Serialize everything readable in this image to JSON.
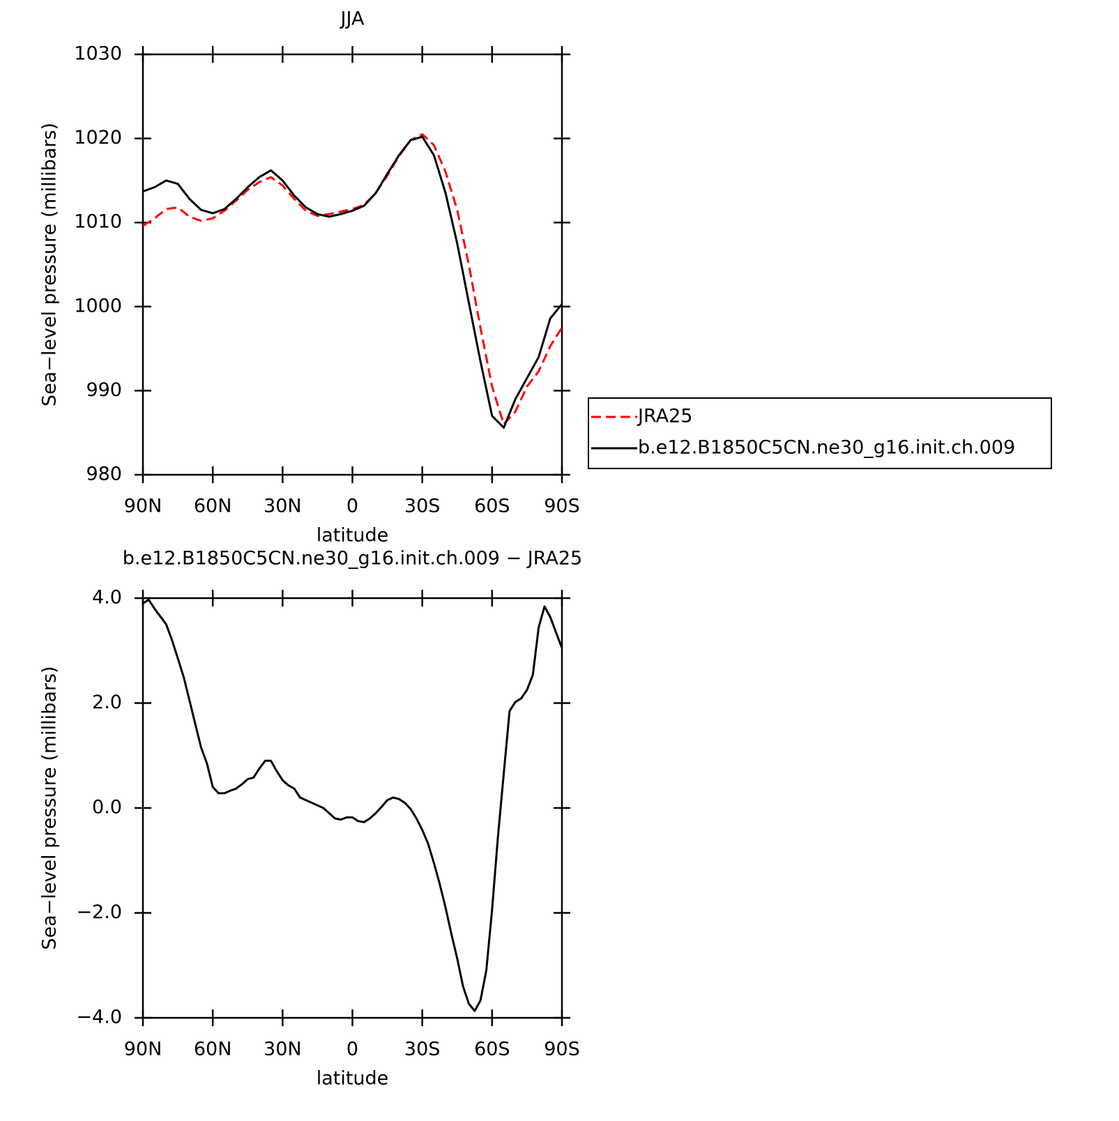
{
  "chart_data": [
    {
      "type": "line",
      "title": "JJA",
      "xlabel": "latitude",
      "ylabel": "Sea−level pressure (millibars)",
      "x": [
        90,
        85,
        80,
        75,
        70,
        65,
        60,
        55,
        50,
        45,
        40,
        35,
        30,
        25,
        20,
        15,
        10,
        5,
        0,
        -5,
        -10,
        -15,
        -20,
        -25,
        -30,
        -35,
        -40,
        -45,
        -50,
        -55,
        -60,
        -65,
        -70,
        -75,
        -80,
        -85,
        -90
      ],
      "xlim": [
        90,
        -90
      ],
      "xticks": [
        {
          "value": 90,
          "label": "90N"
        },
        {
          "value": 60,
          "label": "60N"
        },
        {
          "value": 30,
          "label": "30N"
        },
        0,
        {
          "value": -30,
          "label": "30S"
        },
        {
          "value": -60,
          "label": "60S"
        },
        {
          "value": -90,
          "label": "90S"
        }
      ],
      "ylim": [
        980,
        1030
      ],
      "yticks": [
        980,
        990,
        1000,
        1010,
        1020,
        1030
      ],
      "legend": "right",
      "series": [
        {
          "name": "JRA25",
          "color": "#ff0000",
          "dashed": true,
          "values": [
            1009.6,
            1010.5,
            1011.6,
            1011.8,
            1010.7,
            1010.2,
            1010.5,
            1011.4,
            1012.6,
            1013.9,
            1014.8,
            1015.4,
            1014.4,
            1012.8,
            1011.4,
            1010.8,
            1011.0,
            1011.3,
            1011.6,
            1012.1,
            1013.5,
            1015.6,
            1017.9,
            1019.8,
            1020.5,
            1019.2,
            1016.0,
            1011.5,
            1005.0,
            997.5,
            990.5,
            986.0,
            987.5,
            990.5,
            992.3,
            995.3,
            997.5
          ]
        },
        {
          "name": "b.e12.B1850C5CN.ne30_g16.init.ch.009",
          "color": "#000000",
          "dashed": false,
          "values": [
            1013.7,
            1014.2,
            1015.0,
            1014.6,
            1012.8,
            1011.5,
            1011.1,
            1011.6,
            1012.8,
            1014.2,
            1015.4,
            1016.2,
            1015.0,
            1013.2,
            1011.8,
            1011.0,
            1010.7,
            1011.0,
            1011.4,
            1012.0,
            1013.5,
            1015.8,
            1018.0,
            1019.8,
            1020.2,
            1018.0,
            1013.5,
            1007.5,
            1000.5,
            993.5,
            987.0,
            985.6,
            989.0,
            991.5,
            994.0,
            998.6,
            1000.3
          ]
        }
      ]
    },
    {
      "type": "line",
      "title": "b.e12.B1850C5CN.ne30_g16.init.ch.009 − JRA25",
      "xlabel": "latitude",
      "ylabel": "Sea−level pressure (millibars)",
      "x": [
        90,
        87.5,
        85,
        82.5,
        80,
        77.5,
        75,
        72.5,
        70,
        67.5,
        65,
        62.5,
        60,
        57.5,
        55,
        52.5,
        50,
        47.5,
        45,
        42.5,
        40,
        37.5,
        35,
        32.5,
        30,
        27.5,
        25,
        22.5,
        20,
        17.5,
        15,
        12.5,
        10,
        7.5,
        5,
        2.5,
        0,
        -2.5,
        -5,
        -7.5,
        -10,
        -12.5,
        -15,
        -17.5,
        -20,
        -22.5,
        -25,
        -27.5,
        -30,
        -32.5,
        -35,
        -37.5,
        -40,
        -42.5,
        -45,
        -47.5,
        -50,
        -52.5,
        -55,
        -57.5,
        -60,
        -62.5,
        -65,
        -67.5,
        -70,
        -72.5,
        -75,
        -77.5,
        -80,
        -82.5,
        -85,
        -87.5,
        -90
      ],
      "xlim": [
        90,
        -90
      ],
      "xticks": [
        {
          "value": 90,
          "label": "90N"
        },
        {
          "value": 60,
          "label": "60N"
        },
        {
          "value": 30,
          "label": "30N"
        },
        0,
        {
          "value": -30,
          "label": "30S"
        },
        {
          "value": -60,
          "label": "60S"
        },
        {
          "value": -90,
          "label": "90S"
        }
      ],
      "ylim": [
        -4,
        4
      ],
      "yticks": [
        {
          "value": -4,
          "label": "−4.0"
        },
        {
          "value": -2,
          "label": "−2.0"
        },
        {
          "value": 0,
          "label": "0.0"
        },
        {
          "value": 2,
          "label": "2.0"
        },
        {
          "value": 4,
          "label": "4.0"
        }
      ],
      "series": [
        {
          "color": "#000000",
          "dashed": false,
          "values": [
            3.9,
            3.97,
            3.8,
            3.65,
            3.5,
            3.2,
            2.85,
            2.5,
            2.05,
            1.6,
            1.15,
            0.85,
            0.4,
            0.28,
            0.28,
            0.33,
            0.37,
            0.45,
            0.55,
            0.58,
            0.75,
            0.9,
            0.9,
            0.7,
            0.53,
            0.43,
            0.37,
            0.2,
            0.15,
            0.1,
            0.05,
            0.0,
            -0.1,
            -0.2,
            -0.22,
            -0.18,
            -0.18,
            -0.25,
            -0.27,
            -0.2,
            -0.1,
            0.02,
            0.15,
            0.2,
            0.17,
            0.1,
            -0.02,
            -0.2,
            -0.42,
            -0.68,
            -1.05,
            -1.45,
            -1.9,
            -2.4,
            -2.87,
            -3.4,
            -3.73,
            -3.87,
            -3.67,
            -3.1,
            -1.94,
            -0.55,
            0.65,
            1.85,
            2.02,
            2.09,
            2.25,
            2.54,
            3.44,
            3.84,
            3.64,
            3.34,
            3.05
          ]
        }
      ]
    }
  ]
}
